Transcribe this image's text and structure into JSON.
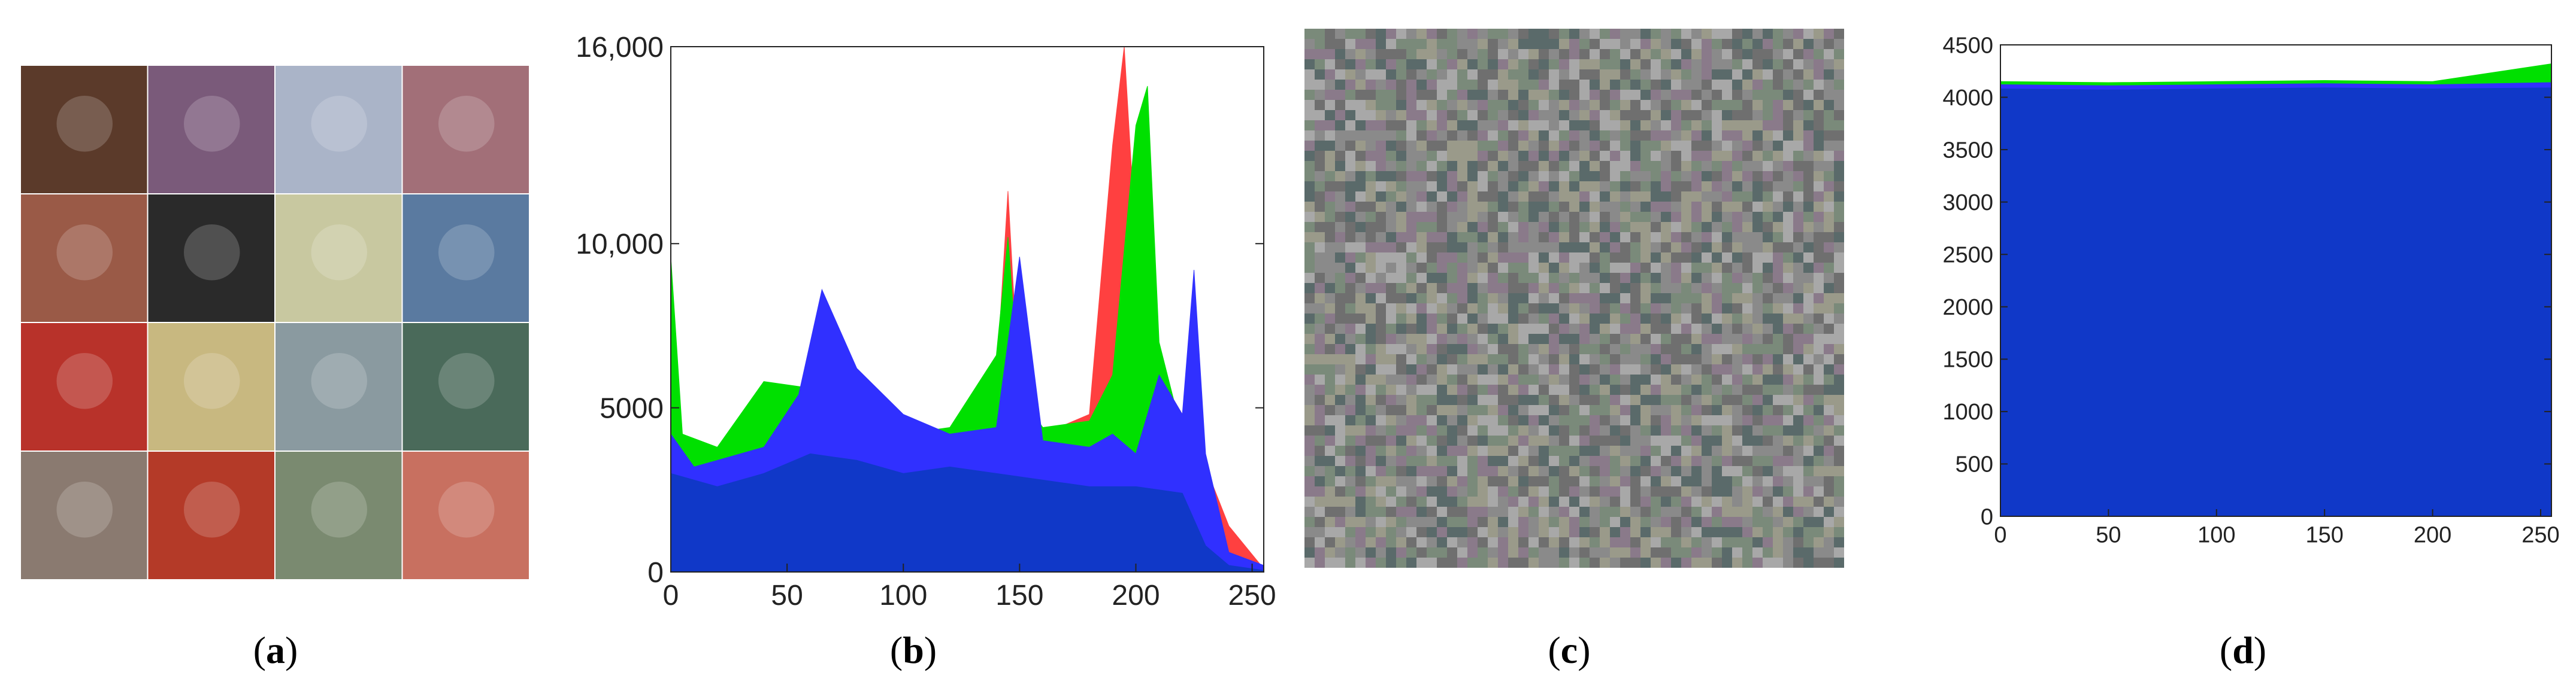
{
  "panels": [
    {
      "id": "a",
      "caption": "a"
    },
    {
      "id": "b",
      "caption": "b"
    },
    {
      "id": "c",
      "caption": "c"
    },
    {
      "id": "d",
      "caption": "d"
    }
  ],
  "mosaic": {
    "rows": 4,
    "cols": 4,
    "tiles": [
      [
        "#5b3a2a",
        "#7a5a7a",
        "#aab4c8",
        "#a26f78"
      ],
      [
        "#9a5a47",
        "#2a2a2a",
        "#c8c8a0",
        "#5a7aa0"
      ],
      [
        "#b8322a",
        "#c8b880",
        "#8a9aa0",
        "#4a6a5a"
      ],
      [
        "#8a7a70",
        "#b43a28",
        "#7a8a70",
        "#c87060"
      ]
    ]
  },
  "noise_colors": [
    "#6f6f6f",
    "#8a8a8a",
    "#a8a8a8",
    "#7a8a7a",
    "#8a7a8a",
    "#9a9a8a",
    "#5a6a6a"
  ],
  "chart_data": [
    {
      "panel": "b",
      "type": "area",
      "xlabel": "",
      "ylabel": "",
      "xlim": [
        0,
        255
      ],
      "ylim": [
        0,
        16000
      ],
      "xticks": [
        "0",
        "50",
        "100",
        "150",
        "200",
        "250"
      ],
      "yticks": [
        "0",
        "5000",
        "10,000",
        "16,000"
      ],
      "series": [
        {
          "color": "#ff4040",
          "x": [
            0,
            20,
            40,
            60,
            80,
            100,
            120,
            140,
            145,
            150,
            160,
            180,
            190,
            195,
            200,
            210,
            220,
            230,
            240,
            255
          ],
          "y": [
            2000,
            2600,
            4800,
            5200,
            4800,
            4000,
            4400,
            5800,
            11600,
            5200,
            4200,
            4800,
            13000,
            16000,
            10000,
            6000,
            4800,
            3200,
            1400,
            100
          ]
        },
        {
          "color": "#00e000",
          "x": [
            0,
            5,
            20,
            40,
            60,
            80,
            100,
            120,
            140,
            145,
            150,
            160,
            180,
            190,
            200,
            205,
            210,
            220,
            230,
            240,
            255
          ],
          "y": [
            9600,
            4200,
            3800,
            5800,
            5600,
            4600,
            4200,
            4400,
            6600,
            10200,
            5400,
            4400,
            4600,
            6000,
            13600,
            14800,
            7000,
            4200,
            1200,
            600,
            100
          ]
        },
        {
          "color": "#3030ff",
          "x": [
            0,
            10,
            20,
            40,
            55,
            65,
            80,
            100,
            120,
            140,
            150,
            160,
            180,
            190,
            200,
            210,
            220,
            225,
            230,
            240,
            255
          ],
          "y": [
            4200,
            3200,
            3400,
            3800,
            5400,
            8600,
            6200,
            4800,
            4200,
            4400,
            9600,
            4000,
            3800,
            4200,
            3600,
            6000,
            4800,
            9200,
            3600,
            600,
            200
          ]
        },
        {
          "color": "#1038c8",
          "x": [
            0,
            20,
            40,
            60,
            80,
            100,
            120,
            140,
            160,
            180,
            200,
            220,
            230,
            240,
            255
          ],
          "y": [
            3000,
            2600,
            3000,
            3600,
            3400,
            3000,
            3200,
            3000,
            2800,
            2600,
            2600,
            2400,
            800,
            200,
            50
          ]
        }
      ]
    },
    {
      "panel": "d",
      "type": "area",
      "xlabel": "",
      "ylabel": "",
      "xlim": [
        0,
        255
      ],
      "ylim": [
        0,
        4500
      ],
      "xticks": [
        "0",
        "50",
        "100",
        "150",
        "200",
        "250"
      ],
      "yticks": [
        "0",
        "500",
        "1000",
        "1500",
        "2000",
        "2500",
        "3000",
        "3500",
        "4000",
        "4500"
      ],
      "series": [
        {
          "color": "#00e000",
          "x": [
            0,
            50,
            100,
            150,
            200,
            255
          ],
          "y": [
            4150,
            4140,
            4150,
            4160,
            4150,
            4320
          ]
        },
        {
          "color": "#3030ff",
          "x": [
            0,
            50,
            100,
            150,
            200,
            255
          ],
          "y": [
            4120,
            4110,
            4120,
            4130,
            4120,
            4140
          ]
        },
        {
          "color": "#1038c8",
          "x": [
            0,
            50,
            100,
            150,
            200,
            255
          ],
          "y": [
            4080,
            4070,
            4080,
            4090,
            4080,
            4090
          ]
        }
      ]
    }
  ]
}
